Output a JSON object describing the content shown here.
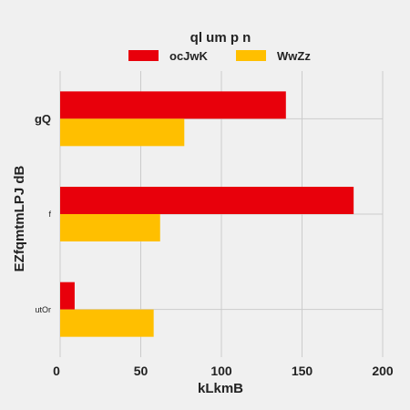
{
  "chart_data": {
    "type": "bar",
    "orientation": "horizontal",
    "title": "ql um p n",
    "xlabel": "kLkmB",
    "ylabel": "EZfqmtmLPJ dB",
    "categories": [
      "gQ",
      "f",
      "utOr"
    ],
    "series": [
      {
        "name": "ocJwK",
        "values": [
          140,
          182,
          9
        ],
        "color": "#e8000b"
      },
      {
        "name": "WwZz",
        "values": [
          77,
          62,
          58
        ],
        "color": "#ffbf00"
      }
    ],
    "xlim": [
      0,
      200
    ],
    "xticks": [
      "0",
      "50",
      "100",
      "150",
      "200"
    ],
    "grid": true,
    "legend": "top-center"
  }
}
